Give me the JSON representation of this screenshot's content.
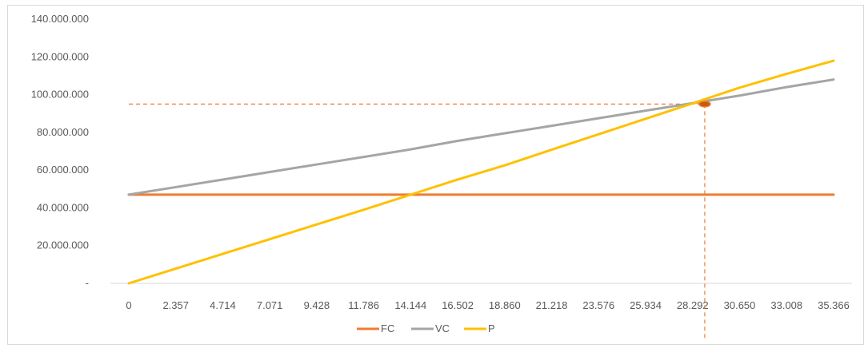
{
  "chart_data": {
    "type": "line",
    "x": [
      0,
      2357,
      4714,
      7071,
      9428,
      11786,
      14144,
      16502,
      18860,
      21218,
      23576,
      25934,
      28292,
      30650,
      33008,
      35366
    ],
    "x_tick_labels": [
      "0",
      "2.357",
      "4.714",
      "7.071",
      "9.428",
      "11.786",
      "14.144",
      "16.502",
      "18.860",
      "21.218",
      "23.576",
      "25.934",
      "28.292",
      "30.650",
      "33.008",
      "35.366"
    ],
    "y_tick_labels": [
      "-",
      "20.000.000",
      "40.000.000",
      "60.000.000",
      "80.000.000",
      "100.000.000",
      "120.000.000",
      "140.000.000"
    ],
    "ylim": [
      0,
      140000000
    ],
    "grid": false,
    "legend_position": "bottom",
    "series": [
      {
        "name": "FC",
        "color": "#ED7D31",
        "values": [
          47000000,
          47000000,
          47000000,
          47000000,
          47000000,
          47000000,
          47000000,
          47000000,
          47000000,
          47000000,
          47000000,
          47000000,
          47000000,
          47000000,
          47000000,
          47000000
        ]
      },
      {
        "name": "VC",
        "color": "#A5A5A5",
        "values": [
          47000000,
          51000000,
          55000000,
          59000000,
          63000000,
          67000000,
          71000000,
          75500000,
          79500000,
          83500000,
          87500000,
          91500000,
          95500000,
          99500000,
          104000000,
          108000000
        ]
      },
      {
        "name": "P",
        "color": "#FFC000",
        "values": [
          0,
          7800000,
          15600000,
          23400000,
          31200000,
          39000000,
          47000000,
          55000000,
          62500000,
          70800000,
          79000000,
          87200000,
          95400000,
          103700000,
          111000000,
          118000000
        ]
      }
    ],
    "break_even": {
      "x": 28900,
      "y": 95000000,
      "guide_color": "#ED7D31",
      "marker_fill": "#C55A11"
    }
  }
}
